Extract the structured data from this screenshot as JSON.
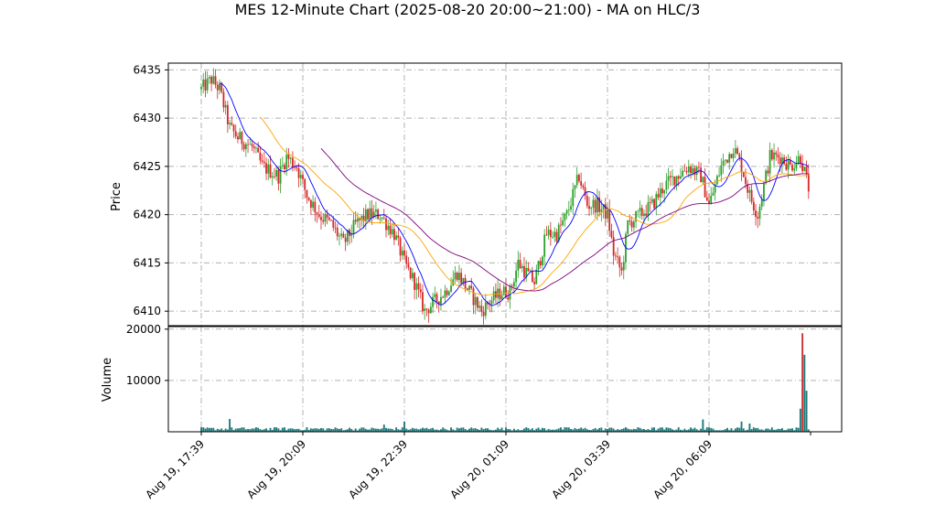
{
  "chart_data": {
    "type": "candlestick",
    "title": "MES 12-Minute Chart (2025-08-20 20:00~21:00) - MA on HLC/3",
    "price_panel": {
      "ylabel": "Price",
      "ylim": [
        6408.5,
        6435.7
      ],
      "yticks": [
        6410,
        6415,
        6420,
        6425,
        6430,
        6435
      ],
      "grid": true,
      "up_color": "#2ca02c",
      "down_color": "#d62728",
      "ma_colors": [
        "#0000ff",
        "#ffa500",
        "#800080"
      ]
    },
    "volume_panel": {
      "ylabel": "Volume",
      "ylim": [
        0,
        20500
      ],
      "yticks": [
        10000,
        20000
      ],
      "grid": true,
      "color": "#1f7a7a"
    },
    "x_ticks": [
      "Aug 19, 17:39",
      "Aug 19, 20:09",
      "Aug 19, 22:39",
      "Aug 20, 01:09",
      "Aug 20, 03:39",
      "Aug 20, 06:09"
    ],
    "x_tick_index": [
      0,
      50,
      100,
      150,
      200,
      250
    ],
    "bar_count": 300,
    "close_path": [
      [
        0,
        6433
      ],
      [
        5,
        6434
      ],
      [
        9,
        6433
      ],
      [
        14,
        6429
      ],
      [
        18,
        6428
      ],
      [
        25,
        6427
      ],
      [
        30,
        6425
      ],
      [
        38,
        6424
      ],
      [
        42,
        6426
      ],
      [
        47,
        6425
      ],
      [
        52,
        6422
      ],
      [
        58,
        6420
      ],
      [
        64,
        6419
      ],
      [
        70,
        6417
      ],
      [
        76,
        6419
      ],
      [
        82,
        6420
      ],
      [
        88,
        6420
      ],
      [
        95,
        6418
      ],
      [
        100,
        6415
      ],
      [
        105,
        6413
      ],
      [
        110,
        6410
      ],
      [
        115,
        6411
      ],
      [
        120,
        6412
      ],
      [
        126,
        6414
      ],
      [
        132,
        6412
      ],
      [
        138,
        6410
      ],
      [
        142,
        6411
      ],
      [
        148,
        6412
      ],
      [
        152,
        6412
      ],
      [
        156,
        6415
      ],
      [
        160,
        6414
      ],
      [
        164,
        6413
      ],
      [
        170,
        6418
      ],
      [
        175,
        6418
      ],
      [
        180,
        6420
      ],
      [
        186,
        6424
      ],
      [
        190,
        6421
      ],
      [
        195,
        6421
      ],
      [
        200,
        6420
      ],
      [
        203,
        6416
      ],
      [
        207,
        6414
      ],
      [
        210,
        6419
      ],
      [
        216,
        6420
      ],
      [
        222,
        6421
      ],
      [
        228,
        6423
      ],
      [
        234,
        6424
      ],
      [
        240,
        6425
      ],
      [
        246,
        6424
      ],
      [
        250,
        6421
      ],
      [
        256,
        6425
      ],
      [
        262,
        6427
      ],
      [
        266,
        6425
      ],
      [
        270,
        6422
      ],
      [
        274,
        6420
      ],
      [
        280,
        6426
      ],
      [
        285,
        6426
      ],
      [
        290,
        6425
      ],
      [
        295,
        6426
      ],
      [
        300,
        6422
      ]
    ],
    "volume_spikes": [
      {
        "index": 14,
        "value": 2500
      },
      {
        "index": 90,
        "value": 1400
      },
      {
        "index": 100,
        "value": 2000
      },
      {
        "index": 247,
        "value": 2400
      },
      {
        "index": 266,
        "value": 2000
      },
      {
        "index": 270,
        "value": 1600
      },
      {
        "index": 295,
        "value": 4500
      },
      {
        "index": 296,
        "value": 19200
      },
      {
        "index": 297,
        "value": 15000
      },
      {
        "index": 298,
        "value": 8000
      }
    ]
  }
}
